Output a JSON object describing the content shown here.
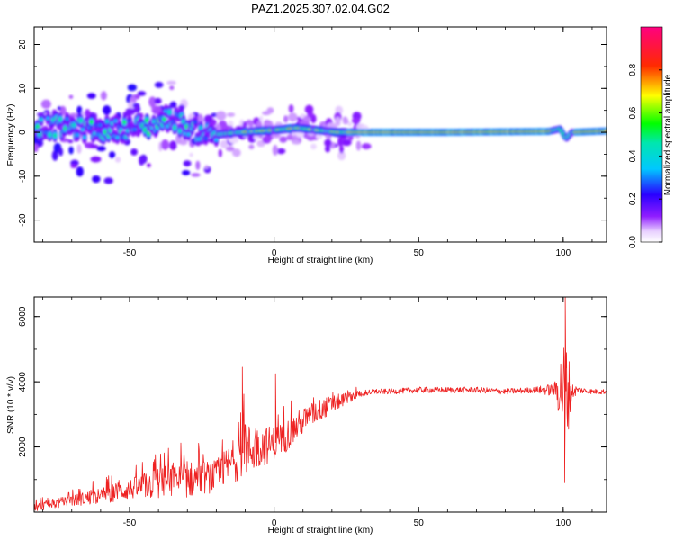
{
  "title": "PAZ1.2025.307.02.04.G02",
  "colors": {
    "snr_line": "#ee2222",
    "axis": "#000000",
    "background": "#ffffff"
  },
  "chart_data": [
    {
      "type": "heatmap",
      "name": "spectrogram",
      "xlabel": "Height of straight line (km)",
      "ylabel": "Frequency (Hz)",
      "xlim": [
        -83,
        115
      ],
      "ylim": [
        -25,
        24
      ],
      "xticks": [
        -50,
        0,
        50,
        100
      ],
      "yticks": [
        -20,
        -10,
        0,
        10,
        20
      ],
      "colorbar": {
        "label": "Normalized spectral amplitude",
        "range": [
          0,
          1
        ],
        "ticks": [
          0.0,
          0.2,
          0.4,
          0.6,
          0.8
        ],
        "colormap": "rainbow (purple-blue-cyan-green-yellow-red-magenta)"
      },
      "ridge": {
        "description": "dominant frequency line",
        "points": [
          [
            -83,
            1.5
          ],
          [
            -70,
            1.0
          ],
          [
            -60,
            0.5
          ],
          [
            -50,
            1.0
          ],
          [
            -42,
            1.5
          ],
          [
            -36,
            3.5
          ],
          [
            -32,
            2.0
          ],
          [
            -28,
            0.5
          ],
          [
            -20,
            -0.5
          ],
          [
            -12,
            0.0
          ],
          [
            0,
            0.5
          ],
          [
            8,
            1.0
          ],
          [
            15,
            0.5
          ],
          [
            22,
            0.0
          ],
          [
            60,
            0.0
          ],
          [
            95,
            0.2
          ],
          [
            99,
            0.8
          ],
          [
            101,
            -1.5
          ],
          [
            103,
            0.0
          ],
          [
            115,
            0.3
          ]
        ]
      }
    },
    {
      "type": "line",
      "name": "snr",
      "xlabel": "Height of straight line (km)",
      "ylabel": "SNR (10 * v/v)",
      "xlim": [
        -83,
        115
      ],
      "ylim": [
        0,
        6600
      ],
      "xticks": [
        -50,
        0,
        50,
        100
      ],
      "yticks": [
        2000,
        4000,
        6000
      ],
      "envelope": {
        "x": [
          -83,
          -70,
          -60,
          -50,
          -40,
          -30,
          -20,
          -15,
          -10,
          -5,
          0,
          5,
          10,
          15,
          20,
          25,
          30,
          35,
          40,
          50,
          60,
          70,
          80,
          90,
          97,
          99,
          101,
          103,
          105,
          110,
          115
        ],
        "mean": [
          150,
          350,
          500,
          700,
          900,
          1000,
          1100,
          1500,
          1900,
          2000,
          2100,
          2400,
          2800,
          3100,
          3300,
          3500,
          3650,
          3700,
          3700,
          3750,
          3750,
          3750,
          3700,
          3750,
          3750,
          3800,
          3700,
          3700,
          3750,
          3700,
          3700
        ],
        "amp": [
          180,
          250,
          350,
          450,
          700,
          800,
          700,
          900,
          1200,
          900,
          800,
          700,
          600,
          500,
          400,
          250,
          150,
          120,
          120,
          130,
          130,
          130,
          130,
          130,
          300,
          1500,
          2600,
          400,
          150,
          120,
          120
        ]
      },
      "peaks": [
        {
          "x": -11,
          "y": 4450
        },
        {
          "x": 0.5,
          "y": 4250
        },
        {
          "x": 100.7,
          "y": 6600
        },
        {
          "x": 100.5,
          "y": 900
        }
      ]
    }
  ]
}
